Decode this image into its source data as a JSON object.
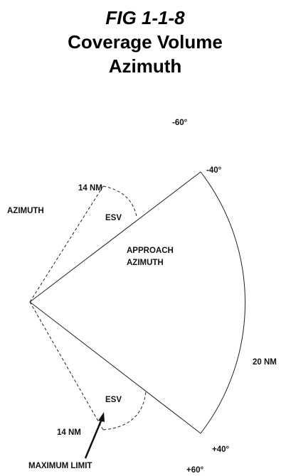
{
  "header": {
    "fig": "FIG 1-1-8",
    "title_line1": "Coverage Volume",
    "title_line2": "Azimuth"
  },
  "labels": {
    "minus60": "-60°",
    "minus40": "-40°",
    "upper_range": "14 NM",
    "azimuth": "AZIMUTH",
    "upper_esv": "ESV",
    "approach_line1": "APPROACH",
    "approach_line2": "AZIMUTH",
    "outer_range": "20 NM",
    "lower_esv": "ESV",
    "lower_range": "14 NM",
    "plus40": "+40°",
    "max_limit": "MAXIMUM LIMIT",
    "plus60": "+60°"
  }
}
